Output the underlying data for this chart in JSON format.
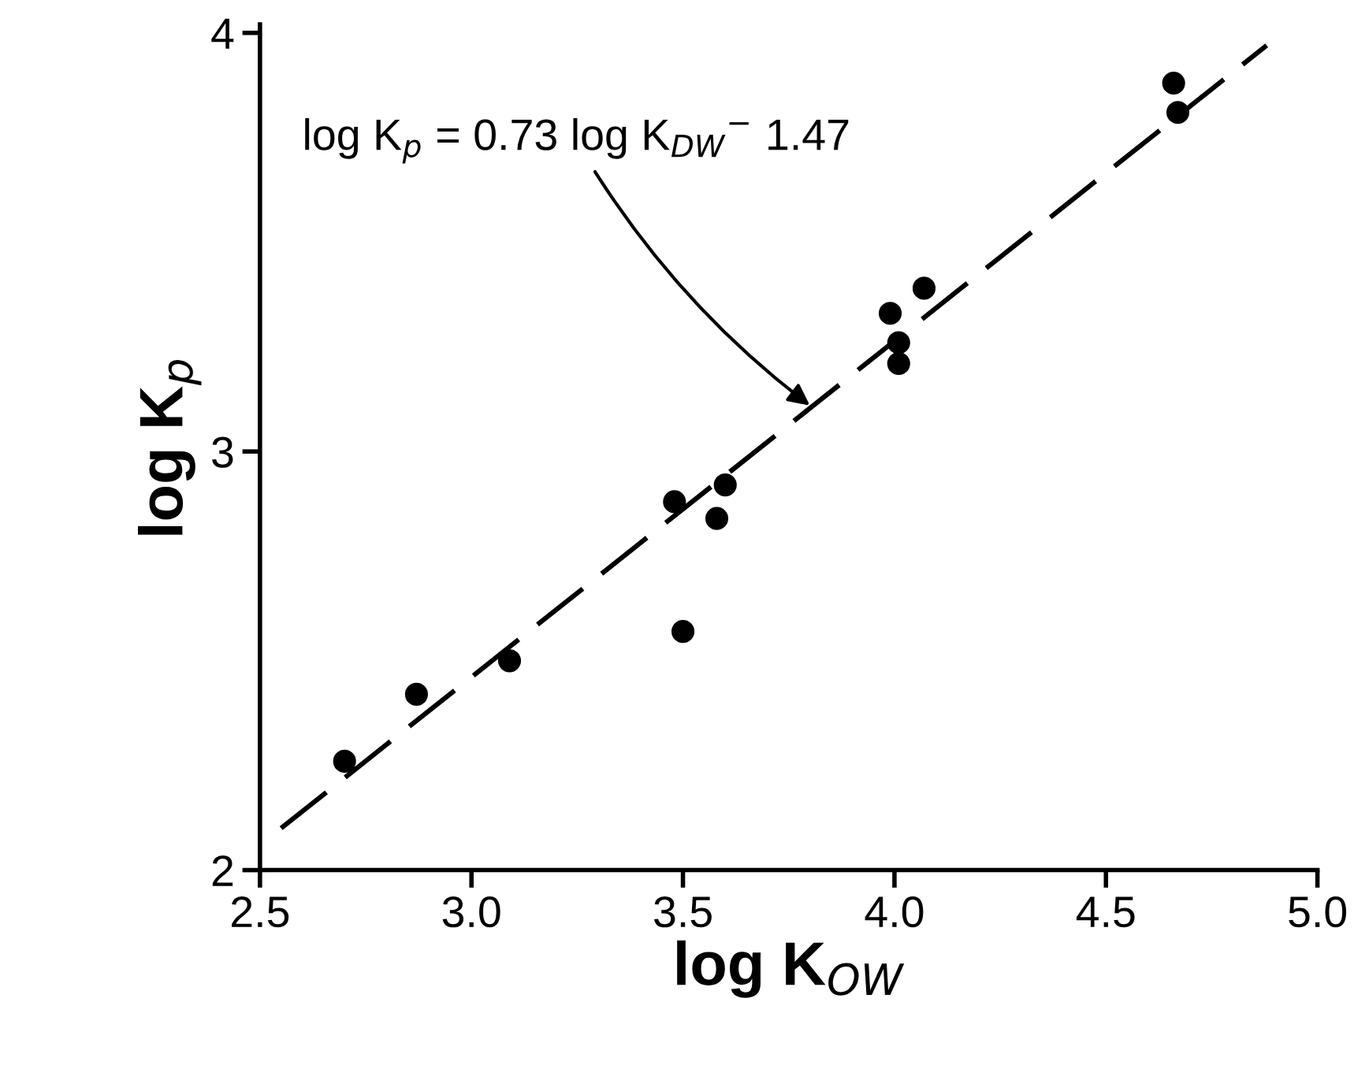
{
  "chart_data": {
    "type": "scatter",
    "xlabel": "log K$_{OW}$",
    "ylabel": "log K$_{p}$",
    "xlim": [
      2.5,
      5.0
    ],
    "ylim": [
      2.0,
      4.02
    ],
    "xticks": [
      2.5,
      {
        "value": 3.0,
        "label": "3.0"
      },
      3.5,
      {
        "value": 4.0,
        "label": "4.0"
      },
      4.5,
      {
        "value": 5.0,
        "label": "5.0"
      }
    ],
    "yticks": [
      2,
      3,
      4
    ],
    "grid": false,
    "annotations": [
      {
        "text": "log K$_{p}$ = 0.73 log K$_{DW}$$^{−}$ 1.47",
        "x": 3.8,
        "y": 3.11
      }
    ],
    "series": [
      {
        "color": "#000000",
        "marker": "circle",
        "x": [
          2.7,
          2.87,
          3.09,
          3.48,
          3.5,
          3.58,
          3.6,
          3.99,
          4.01,
          4.01,
          4.07,
          4.66,
          4.67
        ],
        "values": [
          2.26,
          2.42,
          2.5,
          2.88,
          2.57,
          2.84,
          2.92,
          3.33,
          3.26,
          3.21,
          3.39,
          3.88,
          3.81
        ]
      },
      {
        "type": "line",
        "color": "#000000",
        "line_style": "dashed",
        "marker": "none",
        "x": [
          2.55,
          4.88
        ],
        "values": [
          2.1,
          3.97
        ]
      }
    ]
  }
}
